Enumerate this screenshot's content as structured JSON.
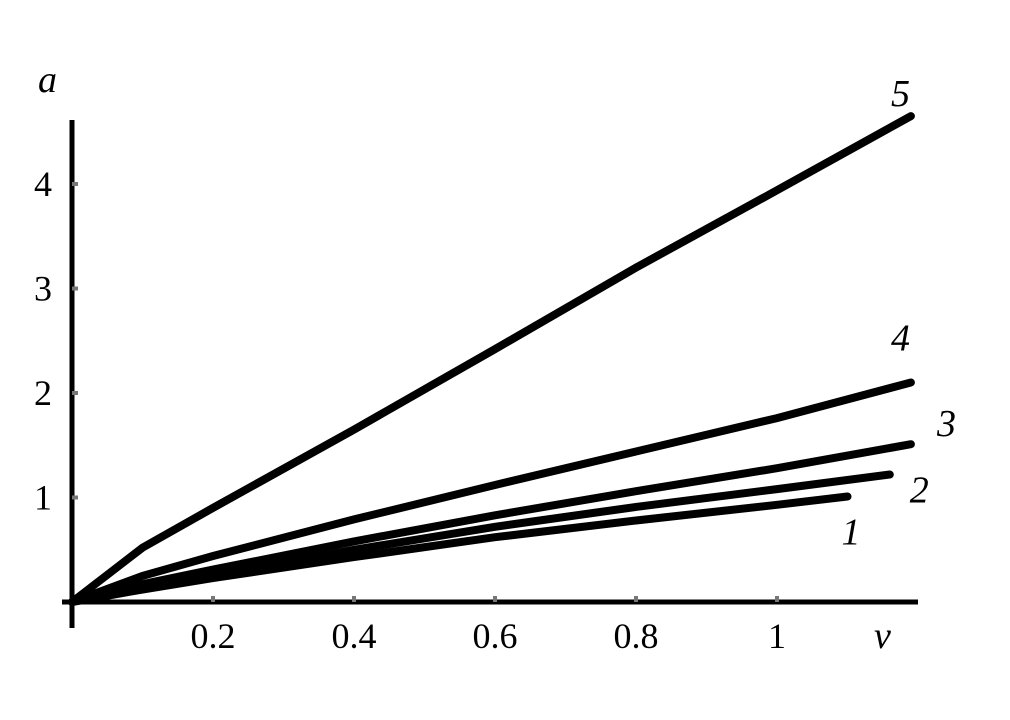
{
  "chart_data": {
    "type": "line",
    "title": "",
    "xlabel": "v",
    "ylabel": "a",
    "xlim": [
      0,
      1.2
    ],
    "ylim": [
      0,
      4.6
    ],
    "xticks": [
      0.2,
      0.4,
      0.6,
      0.8,
      1
    ],
    "xtick_labels": [
      "0.2",
      "0.4",
      "0.6",
      "0.8",
      "1"
    ],
    "yticks": [
      1,
      2,
      3,
      4
    ],
    "ytick_labels": [
      "1",
      "2",
      "3",
      "4"
    ],
    "grid": false,
    "legend": "none",
    "series": [
      {
        "name": "1",
        "x": [
          0,
          0.1,
          0.2,
          0.4,
          0.6,
          0.8,
          1.0,
          1.1
        ],
        "y": [
          0,
          0.12,
          0.23,
          0.43,
          0.62,
          0.78,
          0.93,
          1.01
        ]
      },
      {
        "name": "2",
        "x": [
          0,
          0.1,
          0.2,
          0.4,
          0.6,
          0.8,
          1.0,
          1.16
        ],
        "y": [
          0,
          0.14,
          0.26,
          0.5,
          0.72,
          0.91,
          1.08,
          1.22
        ]
      },
      {
        "name": "3",
        "x": [
          0,
          0.1,
          0.2,
          0.4,
          0.6,
          0.8,
          1.0,
          1.19
        ],
        "y": [
          0,
          0.17,
          0.31,
          0.58,
          0.83,
          1.06,
          1.28,
          1.51
        ]
      },
      {
        "name": "4",
        "x": [
          0,
          0.1,
          0.2,
          0.4,
          0.6,
          0.8,
          1.0,
          1.19
        ],
        "y": [
          0,
          0.25,
          0.44,
          0.79,
          1.12,
          1.44,
          1.76,
          2.1
        ]
      },
      {
        "name": "5",
        "x": [
          0,
          0.1,
          0.2,
          0.4,
          0.6,
          0.8,
          1.0,
          1.19
        ],
        "y": [
          0,
          0.52,
          0.9,
          1.65,
          2.42,
          3.2,
          3.94,
          4.65
        ]
      }
    ]
  }
}
